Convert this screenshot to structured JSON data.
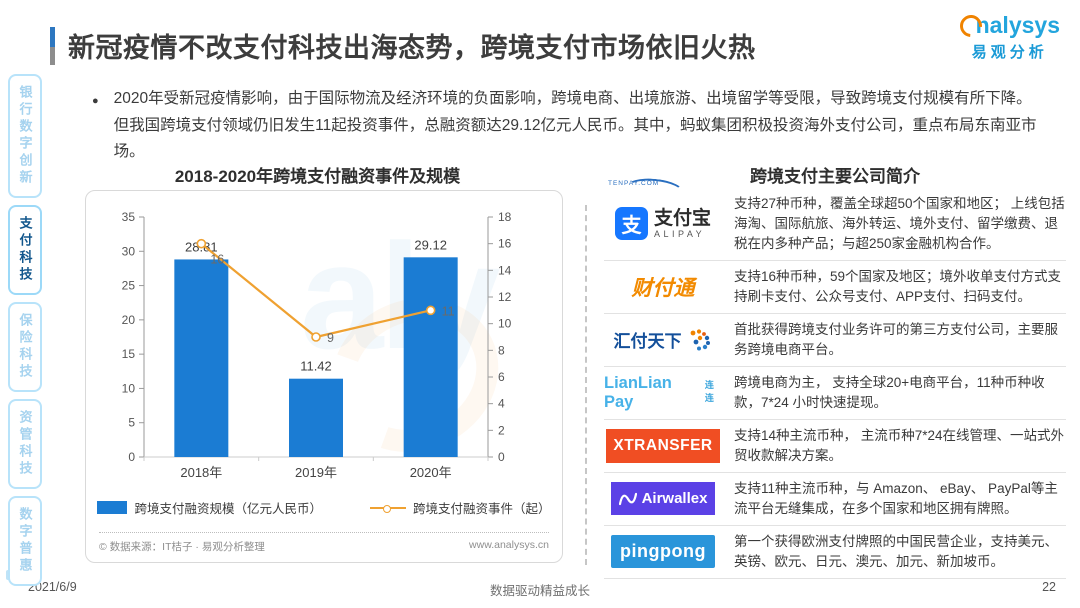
{
  "header": {
    "title": "新冠疫情不改支付科技出海态势，跨境支付市场依旧火热",
    "brand_en": "nalysys",
    "brand_cn": "易观分析"
  },
  "watermark": {
    "text": "aly"
  },
  "sidebar": {
    "items": [
      {
        "label": "银行数字创新",
        "active": false
      },
      {
        "label": "支付科技",
        "active": true
      },
      {
        "label": "保险科技",
        "active": false
      },
      {
        "label": "资管科技",
        "active": false
      },
      {
        "label": "数字普惠",
        "active": false
      }
    ]
  },
  "intro": {
    "bullet": "●",
    "text": "2020年受新冠疫情影响，由于国际物流及经济环境的负面影响，跨境电商、出境旅游、出境留学等受限，导致跨境支付规模有所下降。但我国跨境支付领域仍旧发生11起投资事件，总融资额达29.12亿元人民币。其中，蚂蚁集团积极投资海外支付公司，重点布局东南亚市场。"
  },
  "chart_data": {
    "type": "bar",
    "title": "2018-2020年跨境支付融资事件及规模",
    "categories": [
      "2018年",
      "2019年",
      "2020年"
    ],
    "series": [
      {
        "name": "跨境支付融资规模（亿元人民币）",
        "type": "bar",
        "axis": "left",
        "color": "#1b7cd3",
        "values": [
          28.81,
          11.42,
          29.12
        ]
      },
      {
        "name": "跨境支付融资事件（起）",
        "type": "line",
        "axis": "right",
        "color": "#efa131",
        "values": [
          16,
          9,
          11
        ]
      }
    ],
    "left_axis": {
      "min": 0,
      "max": 35,
      "step": 5
    },
    "right_axis": {
      "min": 0,
      "max": 18,
      "step": 2
    },
    "legend_position": "bottom",
    "grid": false,
    "source_left": "© 数据来源：IT桔子 · 易观分析整理",
    "source_right": "www.analysys.cn"
  },
  "right_panel": {
    "title": "跨境支付主要公司简介",
    "companies": [
      {
        "name": "支付宝 ALIPAY",
        "logo": {
          "icon_char": "支",
          "cn": "支付宝",
          "en": "ALIPAY"
        },
        "desc": "支持27种币种，覆盖全球超50个国家和地区； 上线包括海淘、国际航旅、海外转运、境外支付、留学缴费、退税在内多种产品；与超250家金融机构合作。"
      },
      {
        "name": "财付通",
        "logo": {
          "cn": "财付通",
          "sub": "TENPAY.COM"
        },
        "desc": "支持16种币种，59个国家及地区；境外收单支付方式支持刷卡支付、公众号支付、APP支付、扫码支付。"
      },
      {
        "name": "汇付天下",
        "logo": {
          "cn": "汇付天下"
        },
        "desc": "首批获得跨境支付业务许可的第三方支付公司，主要服务跨境电商平台。"
      },
      {
        "name": "LianLian Pay 连连",
        "logo": {
          "en": "LianLian Pay",
          "cn": "连连"
        },
        "desc": "跨境电商为主， 支持全球20+电商平台，11种币种收款，7*24 小时快速提现。"
      },
      {
        "name": "XTRANSFER",
        "logo": {
          "en": "XTRANSFER"
        },
        "desc": "支持14种主流币种， 主流币种7*24在线管理、一站式外贸收款解决方案。"
      },
      {
        "name": "Airwallex",
        "logo": {
          "en": "Airwallex"
        },
        "desc": "支持11种主流币种，与 Amazon、 eBay、 PayPal等主流平台无缝集成，在多个国家和地区拥有牌照。"
      },
      {
        "name": "pingpong",
        "logo": {
          "en": "pingpong"
        },
        "desc": "第一个获得欧洲支付牌照的中国民营企业，支持美元、英镑、欧元、日元、澳元、加元、新加坡币。"
      }
    ]
  },
  "footer": {
    "date": "2021/6/9",
    "center": "数据驱动精益成长",
    "page": "22"
  }
}
